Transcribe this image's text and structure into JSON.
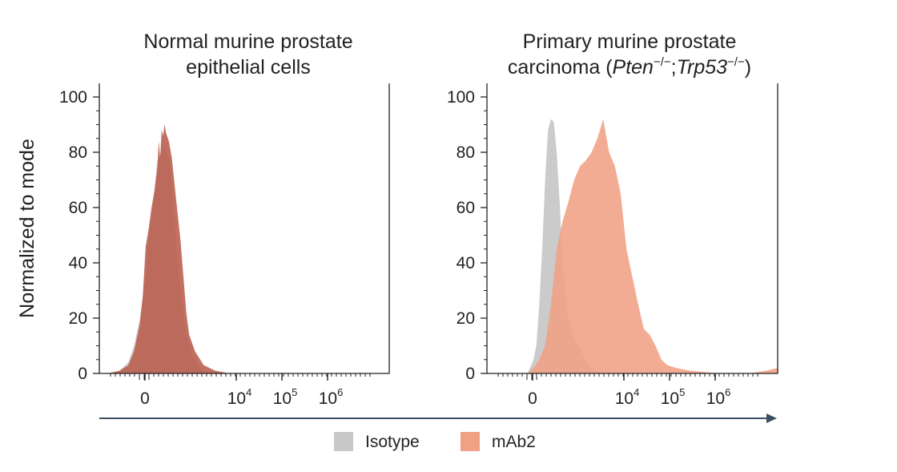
{
  "figure": {
    "ylabel": "Normalized to mode",
    "legend": [
      {
        "name": "Isotype",
        "color": "#c8c8c8"
      },
      {
        "name": "mAb2",
        "color": "#f0a184"
      }
    ],
    "arrow_color": "#3b4f66"
  },
  "chart_data": [
    {
      "type": "area",
      "title_lines": [
        "Normal murine prostate",
        "epithelial cells"
      ],
      "ylabel": "Normalized to mode",
      "ylim": [
        0,
        100
      ],
      "yticks": [
        0,
        20,
        40,
        60,
        80,
        100
      ],
      "xscale": "biexponential",
      "xticks": [
        {
          "base": "0",
          "exp": ""
        },
        {
          "base": "10",
          "exp": "4"
        },
        {
          "base": "10",
          "exp": "5"
        },
        {
          "base": "10",
          "exp": "6"
        }
      ],
      "legend": "bottom",
      "series": [
        {
          "name": "Isotype",
          "color": "#c8c8c8",
          "x": [
            0.03,
            0.07,
            0.1,
            0.12,
            0.14,
            0.16,
            0.17,
            0.18,
            0.19,
            0.2,
            0.21,
            0.22,
            0.23,
            0.24,
            0.25,
            0.26,
            0.27,
            0.28,
            0.3,
            0.32,
            0.34,
            0.36,
            0.4,
            0.45
          ],
          "values": [
            0,
            1,
            4,
            10,
            20,
            35,
            50,
            56,
            66,
            77,
            79,
            83,
            80,
            78,
            70,
            55,
            40,
            30,
            14,
            7,
            3,
            1,
            0.5,
            0
          ]
        },
        {
          "name": "mAb2",
          "color": "#b85c4c",
          "x": [
            0.03,
            0.07,
            0.1,
            0.12,
            0.14,
            0.15,
            0.16,
            0.17,
            0.18,
            0.19,
            0.2,
            0.205,
            0.21,
            0.215,
            0.22,
            0.225,
            0.23,
            0.24,
            0.25,
            0.26,
            0.27,
            0.28,
            0.29,
            0.3,
            0.31,
            0.33,
            0.36,
            0.4,
            0.45
          ],
          "values": [
            0,
            1,
            3,
            8,
            18,
            28,
            46,
            52,
            60,
            66,
            74,
            84,
            78,
            88,
            86,
            90,
            87,
            84,
            78,
            68,
            58,
            48,
            35,
            22,
            14,
            8,
            3,
            1,
            0
          ]
        }
      ]
    },
    {
      "type": "area",
      "title_lines": [
        "Primary murine prostate",
        "carcinoma (Pten−/−;Trp53−/−)"
      ],
      "title_parts": [
        {
          "text": "carcinoma (",
          "italic": false,
          "sup": false
        },
        {
          "text": "Pten",
          "italic": true,
          "sup": false
        },
        {
          "text": "−/−",
          "italic": false,
          "sup": true
        },
        {
          "text": ";",
          "italic": false,
          "sup": false
        },
        {
          "text": "Trp53",
          "italic": true,
          "sup": false
        },
        {
          "text": "−/−",
          "italic": false,
          "sup": true
        },
        {
          "text": ")",
          "italic": false,
          "sup": false
        }
      ],
      "ylabel": "Normalized to mode",
      "ylim": [
        0,
        100
      ],
      "yticks": [
        0,
        20,
        40,
        60,
        80,
        100
      ],
      "xscale": "biexponential",
      "xticks": [
        {
          "base": "0",
          "exp": ""
        },
        {
          "base": "10",
          "exp": "4"
        },
        {
          "base": "10",
          "exp": "5"
        },
        {
          "base": "10",
          "exp": "6"
        }
      ],
      "legend": "bottom",
      "series": [
        {
          "name": "Isotype",
          "color": "#c8c8c8",
          "x": [
            0.14,
            0.16,
            0.17,
            0.18,
            0.19,
            0.2,
            0.21,
            0.22,
            0.23,
            0.24,
            0.25,
            0.26,
            0.27,
            0.28,
            0.3,
            0.32,
            0.34,
            0.36,
            0.4
          ],
          "values": [
            0,
            5,
            10,
            25,
            45,
            70,
            88,
            92,
            91,
            80,
            62,
            40,
            30,
            20,
            13,
            9,
            5,
            2,
            0
          ]
        },
        {
          "name": "mAb2",
          "color": "#f0a184",
          "x": [
            0.14,
            0.16,
            0.18,
            0.2,
            0.22,
            0.24,
            0.26,
            0.28,
            0.3,
            0.32,
            0.34,
            0.36,
            0.38,
            0.4,
            0.42,
            0.44,
            0.46,
            0.48,
            0.5,
            0.52,
            0.54,
            0.56,
            0.58,
            0.6,
            0.62,
            0.65,
            0.7,
            0.75,
            0.8,
            0.9,
            0.96,
            1.0
          ],
          "values": [
            0,
            2,
            5,
            10,
            25,
            45,
            55,
            62,
            70,
            75,
            77,
            80,
            85,
            92,
            80,
            75,
            65,
            45,
            35,
            25,
            16,
            14,
            10,
            5,
            3,
            2,
            1,
            0.5,
            0,
            0,
            1,
            2
          ]
        }
      ]
    }
  ]
}
